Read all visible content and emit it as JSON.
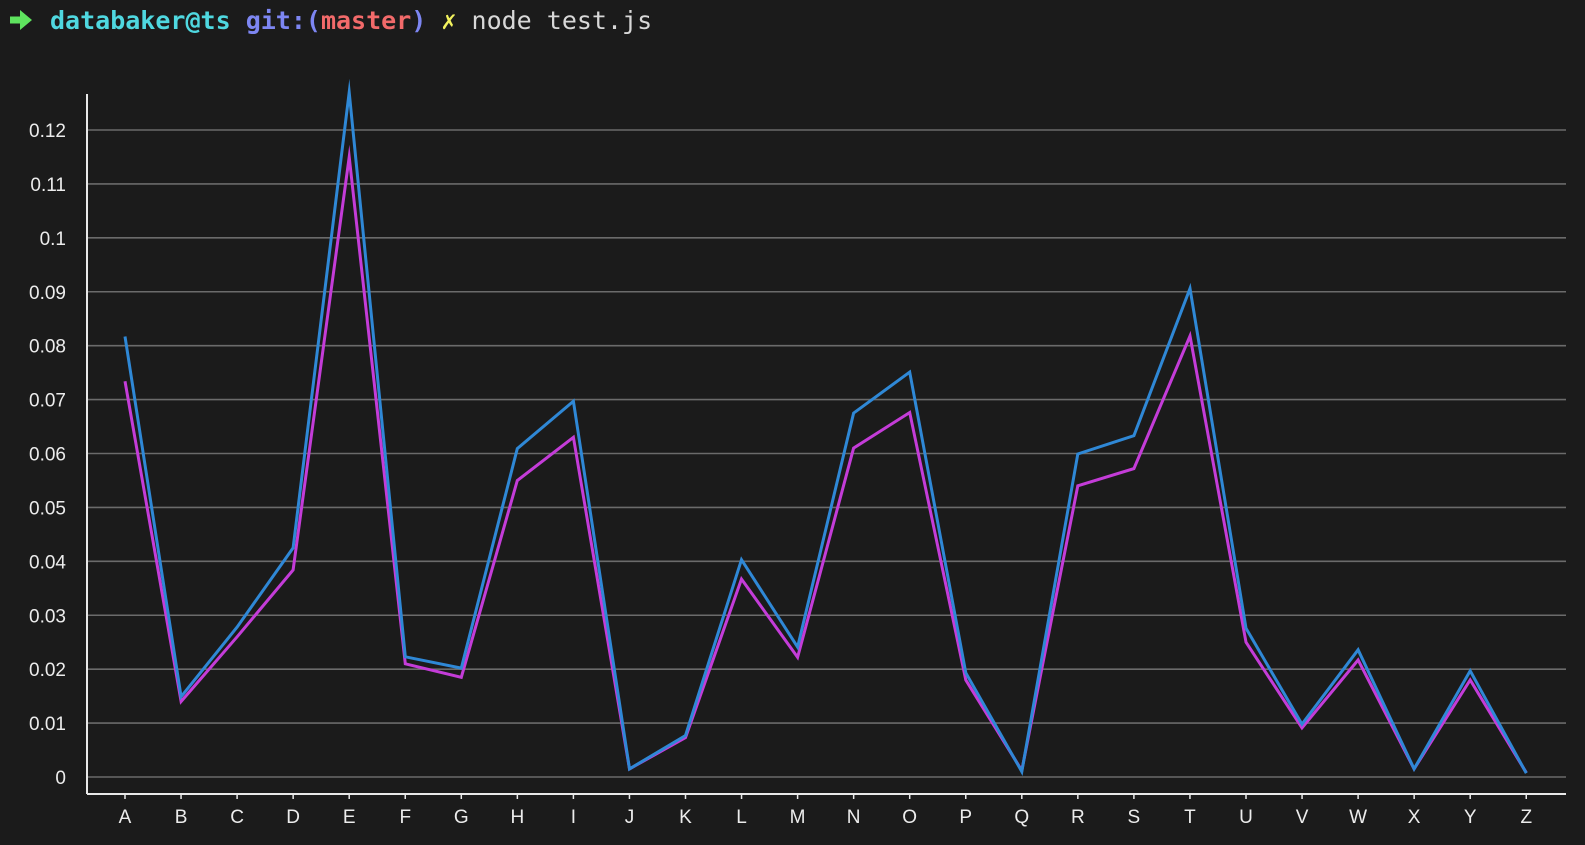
{
  "terminal": {
    "user_host": "databaker@ts",
    "git_open": "git:(",
    "branch": "master",
    "git_close": ")",
    "dirty_marker": "✗",
    "command": "node test.js",
    "prompt_icon": "arrow-right-icon"
  },
  "colors": {
    "background": "#1b1b1b",
    "series_blue": "#2f88d6",
    "series_magenta": "#c43cd8",
    "grid": "#6b6b6b",
    "axis": "#e8e8e8"
  },
  "chart_data": {
    "type": "line",
    "title": "",
    "xlabel": "",
    "ylabel": "",
    "ylim": [
      0,
      0.12
    ],
    "grid": true,
    "legend": false,
    "categories": [
      "A",
      "B",
      "C",
      "D",
      "E",
      "F",
      "G",
      "H",
      "I",
      "J",
      "K",
      "L",
      "M",
      "N",
      "O",
      "P",
      "Q",
      "R",
      "S",
      "T",
      "U",
      "V",
      "W",
      "X",
      "Y",
      "Z"
    ],
    "yticks": [
      0,
      0.01,
      0.02,
      0.03,
      0.04,
      0.05,
      0.06,
      0.07,
      0.08,
      0.09,
      0.1,
      0.11,
      0.12
    ],
    "series": [
      {
        "color": "#2f88d6",
        "values": [
          0.0817,
          0.0149,
          0.0278,
          0.0425,
          0.127,
          0.0223,
          0.0202,
          0.0609,
          0.0697,
          0.0015,
          0.0077,
          0.0403,
          0.0241,
          0.0675,
          0.0751,
          0.0193,
          0.001,
          0.0599,
          0.0633,
          0.0906,
          0.0276,
          0.0098,
          0.0236,
          0.0015,
          0.0197,
          0.0007
        ]
      },
      {
        "color": "#c43cd8",
        "values": [
          0.0734,
          0.014,
          0.026,
          0.0384,
          0.115,
          0.021,
          0.0185,
          0.055,
          0.063,
          0.0015,
          0.0073,
          0.0367,
          0.0222,
          0.061,
          0.0676,
          0.018,
          0.0012,
          0.054,
          0.0572,
          0.0818,
          0.025,
          0.0091,
          0.0217,
          0.0015,
          0.018,
          0.0008
        ]
      }
    ]
  }
}
